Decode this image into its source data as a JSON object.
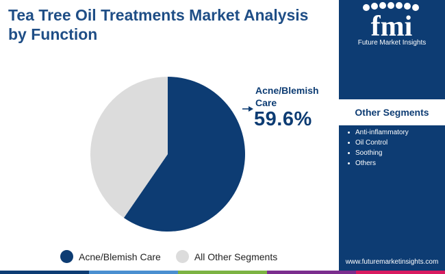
{
  "title": "Tea Tree Oil Treatments Market Analysis by Function",
  "chart_data": {
    "type": "pie",
    "slices": [
      {
        "label": "Acne/Blemish Care",
        "value": 59.6,
        "color": "#0d3c73"
      },
      {
        "label": "All Other Segments",
        "value": 40.4,
        "color": "#dcdcdc"
      }
    ]
  },
  "callout": {
    "label": "Acne/Blemish Care",
    "value": "59.6%"
  },
  "legend": [
    {
      "label": "Acne/Blemish Care",
      "color": "#0d3c73"
    },
    {
      "label": "All Other Segments",
      "color": "#dcdcdc"
    }
  ],
  "side_panel": {
    "logo_text": "fmi",
    "logo_tagline": "Future Market Insights",
    "other_segments_title": "Other Segments",
    "other_segments": [
      "Anti-inflammatory",
      "Oil Control",
      "Soothing",
      "Others"
    ],
    "website": "www.futuremarketinsights.com"
  },
  "colors": {
    "brand_navy": "#0d3c73",
    "title_blue": "#1f4e86",
    "bottom_bar": [
      "#0d3c73",
      "#4a8fd0",
      "#7cb342",
      "#7b2d8e",
      "#d81b60"
    ]
  }
}
